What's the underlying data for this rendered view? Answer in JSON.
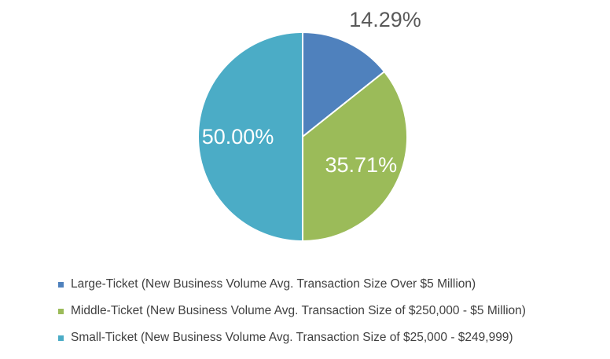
{
  "chart_data": {
    "type": "pie",
    "title": "",
    "series": [
      {
        "values": [
          14.29,
          35.71,
          50.0
        ]
      }
    ],
    "categories": [
      "Large-Ticket (New Business Volume Avg. Transaction Size Over $5 Million)",
      "Middle-Ticket (New Business Volume Avg. Transaction Size of $250,000 - $5 Million)",
      "Small-Ticket (New Business Volume Avg. Transaction Size of $25,000 - $249,999)"
    ],
    "slices": [
      {
        "label": "Large-Ticket (New Business Volume Avg. Transaction Size Over $5 Million)",
        "value": 14.29,
        "data_label": "14.29%",
        "color": "#4f81bd"
      },
      {
        "label": "Middle-Ticket (New Business Volume Avg. Transaction Size of $250,000 - $5 Million)",
        "value": 35.71,
        "data_label": "35.71%",
        "color": "#9bbb59"
      },
      {
        "label": "Small-Ticket (New Business Volume Avg. Transaction Size of $25,000 - $249,999)",
        "value": 50.0,
        "data_label": "50.00%",
        "color": "#4bacc6"
      }
    ],
    "start_angle": "12 o'clock, clockwise",
    "legend_position": "bottom-left",
    "label_colors": {
      "outside": "#595959",
      "inside": "#ffffff"
    }
  }
}
